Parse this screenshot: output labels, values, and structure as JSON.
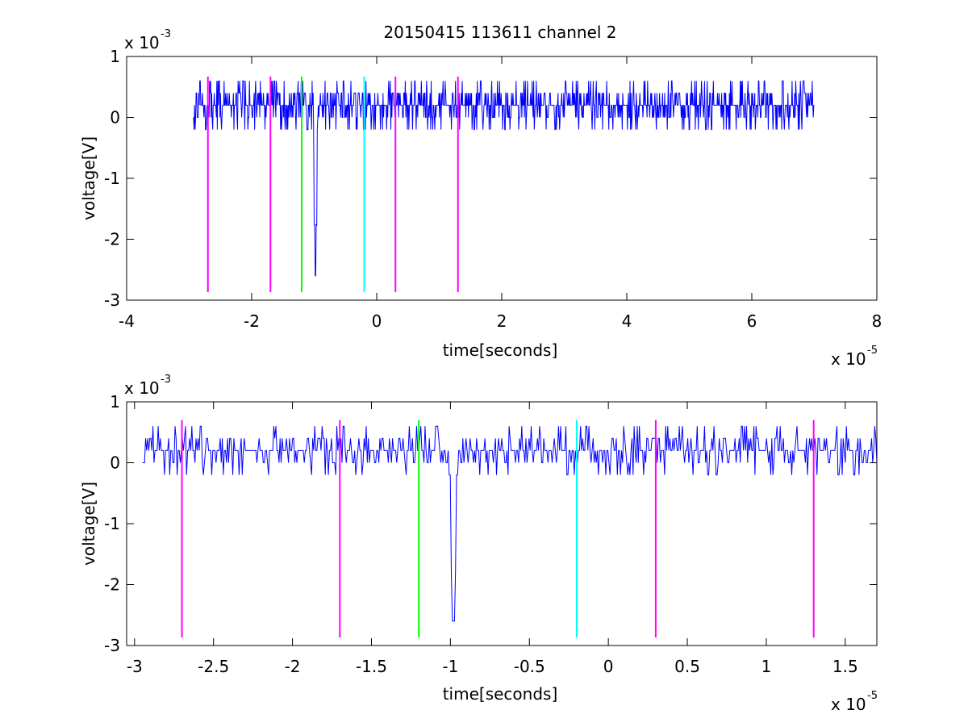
{
  "chart_data": [
    {
      "type": "line",
      "title": "20150415 113611 channel 2",
      "xlabel": "time[seconds]",
      "ylabel": "voltage[V]",
      "x_multiplier": "x 10",
      "x_exponent": "-5",
      "y_multiplier": "x 10",
      "y_exponent": "-3",
      "xlim": [
        -4,
        8
      ],
      "ylim": [
        -3,
        1
      ],
      "xticks": [
        -4,
        -2,
        0,
        2,
        4,
        6,
        8
      ],
      "xtick_labels": [
        "-4",
        "-2",
        "0",
        "2",
        "4",
        "6",
        "8"
      ],
      "yticks": [
        -3,
        -2,
        -1,
        0,
        1
      ],
      "ytick_labels": [
        "-3",
        "-2",
        "-1",
        "0",
        "1"
      ],
      "series": [
        {
          "color": "#0000ff",
          "x_start": -2.93,
          "x_end": 7.0,
          "baseline": 0.2,
          "spike_x": -0.98,
          "spike_min": -2.6
        }
      ],
      "vlines": [
        {
          "x": -2.7,
          "color": "#ff00ff",
          "ymin": -2.87,
          "ymax": 0.67
        },
        {
          "x": -1.7,
          "color": "#ff00ff",
          "ymin": -2.87,
          "ymax": 0.67
        },
        {
          "x": -1.2,
          "color": "#00ff00",
          "ymin": -2.87,
          "ymax": 0.67
        },
        {
          "x": -0.2,
          "color": "#00ffff",
          "ymin": -2.87,
          "ymax": 0.67
        },
        {
          "x": 0.3,
          "color": "#ff00ff",
          "ymin": -2.87,
          "ymax": 0.67
        },
        {
          "x": 1.3,
          "color": "#ff00ff",
          "ymin": -2.87,
          "ymax": 0.67
        }
      ]
    },
    {
      "type": "line",
      "title": "",
      "xlabel": "time[seconds]",
      "ylabel": "voltage[V]",
      "x_multiplier": "x 10",
      "x_exponent": "-5",
      "y_multiplier": "x 10",
      "y_exponent": "-3",
      "xlim": [
        -3.05,
        1.7
      ],
      "ylim": [
        -3,
        1
      ],
      "xticks": [
        -3,
        -2.5,
        -2,
        -1.5,
        -1,
        -0.5,
        0,
        0.5,
        1,
        1.5
      ],
      "xtick_labels": [
        "-3",
        "-2.5",
        "-2",
        "-1.5",
        "-1",
        "-0.5",
        "0",
        "0.5",
        "1",
        "1.5"
      ],
      "yticks": [
        -3,
        -2,
        -1,
        0,
        1
      ],
      "ytick_labels": [
        "-3",
        "-2",
        "-1",
        "0",
        "1"
      ],
      "series": [
        {
          "color": "#0000ff",
          "x_start": -2.95,
          "x_end": 1.7,
          "baseline": 0.2,
          "spike_x": -0.98,
          "spike_min": -2.6
        }
      ],
      "vlines": [
        {
          "x": -2.7,
          "color": "#ff00ff",
          "ymin": -2.87,
          "ymax": 0.7
        },
        {
          "x": -1.7,
          "color": "#ff00ff",
          "ymin": -2.87,
          "ymax": 0.7
        },
        {
          "x": -1.2,
          "color": "#00ff00",
          "ymin": -2.87,
          "ymax": 0.7
        },
        {
          "x": -0.2,
          "color": "#00ffff",
          "ymin": -2.87,
          "ymax": 0.7
        },
        {
          "x": 0.3,
          "color": "#ff00ff",
          "ymin": -2.87,
          "ymax": 0.7
        },
        {
          "x": 1.3,
          "color": "#ff00ff",
          "ymin": -2.87,
          "ymax": 0.7
        }
      ]
    }
  ]
}
